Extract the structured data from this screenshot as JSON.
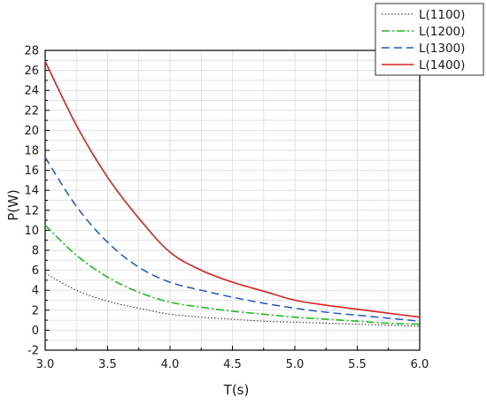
{
  "chart_data": {
    "type": "line",
    "title": "",
    "xlabel": "T(s)",
    "ylabel": "P(W)",
    "xlim": [
      3.0,
      6.0
    ],
    "ylim": [
      -2,
      28
    ],
    "grid": true,
    "legend_position": "top-right",
    "x_ticks": [
      "3.0",
      "3.5",
      "4.0",
      "4.5",
      "5.0",
      "5.5",
      "6.0"
    ],
    "y_ticks": [
      "-2",
      "0",
      "2",
      "4",
      "6",
      "8",
      "10",
      "12",
      "14",
      "16",
      "18",
      "20",
      "22",
      "24",
      "26",
      "28"
    ],
    "x": [
      3.0,
      3.25,
      3.5,
      3.75,
      4.0,
      4.25,
      4.5,
      4.75,
      5.0,
      5.25,
      5.5,
      5.75,
      6.0
    ],
    "series": [
      {
        "name": "L(1100)",
        "color": "#444444",
        "style": "dotted",
        "values": [
          5.7,
          4.0,
          2.9,
          2.2,
          1.6,
          1.3,
          1.1,
          0.9,
          0.8,
          0.7,
          0.6,
          0.5,
          0.4
        ]
      },
      {
        "name": "L(1200)",
        "color": "#22bb22",
        "style": "dashdot",
        "values": [
          10.5,
          7.5,
          5.3,
          3.8,
          2.8,
          2.3,
          1.9,
          1.6,
          1.3,
          1.1,
          0.9,
          0.7,
          0.6
        ]
      },
      {
        "name": "L(1300)",
        "color": "#2255cc",
        "style": "dashed",
        "values": [
          17.3,
          12.4,
          8.8,
          6.3,
          4.8,
          4.0,
          3.3,
          2.7,
          2.2,
          1.8,
          1.5,
          1.2,
          0.9
        ]
      },
      {
        "name": "L(1400)",
        "color": "#dd2222",
        "style": "solid",
        "values": [
          26.9,
          20.5,
          15.3,
          11.2,
          7.8,
          6.0,
          4.8,
          3.9,
          3.0,
          2.5,
          2.1,
          1.7,
          1.3
        ]
      }
    ]
  }
}
